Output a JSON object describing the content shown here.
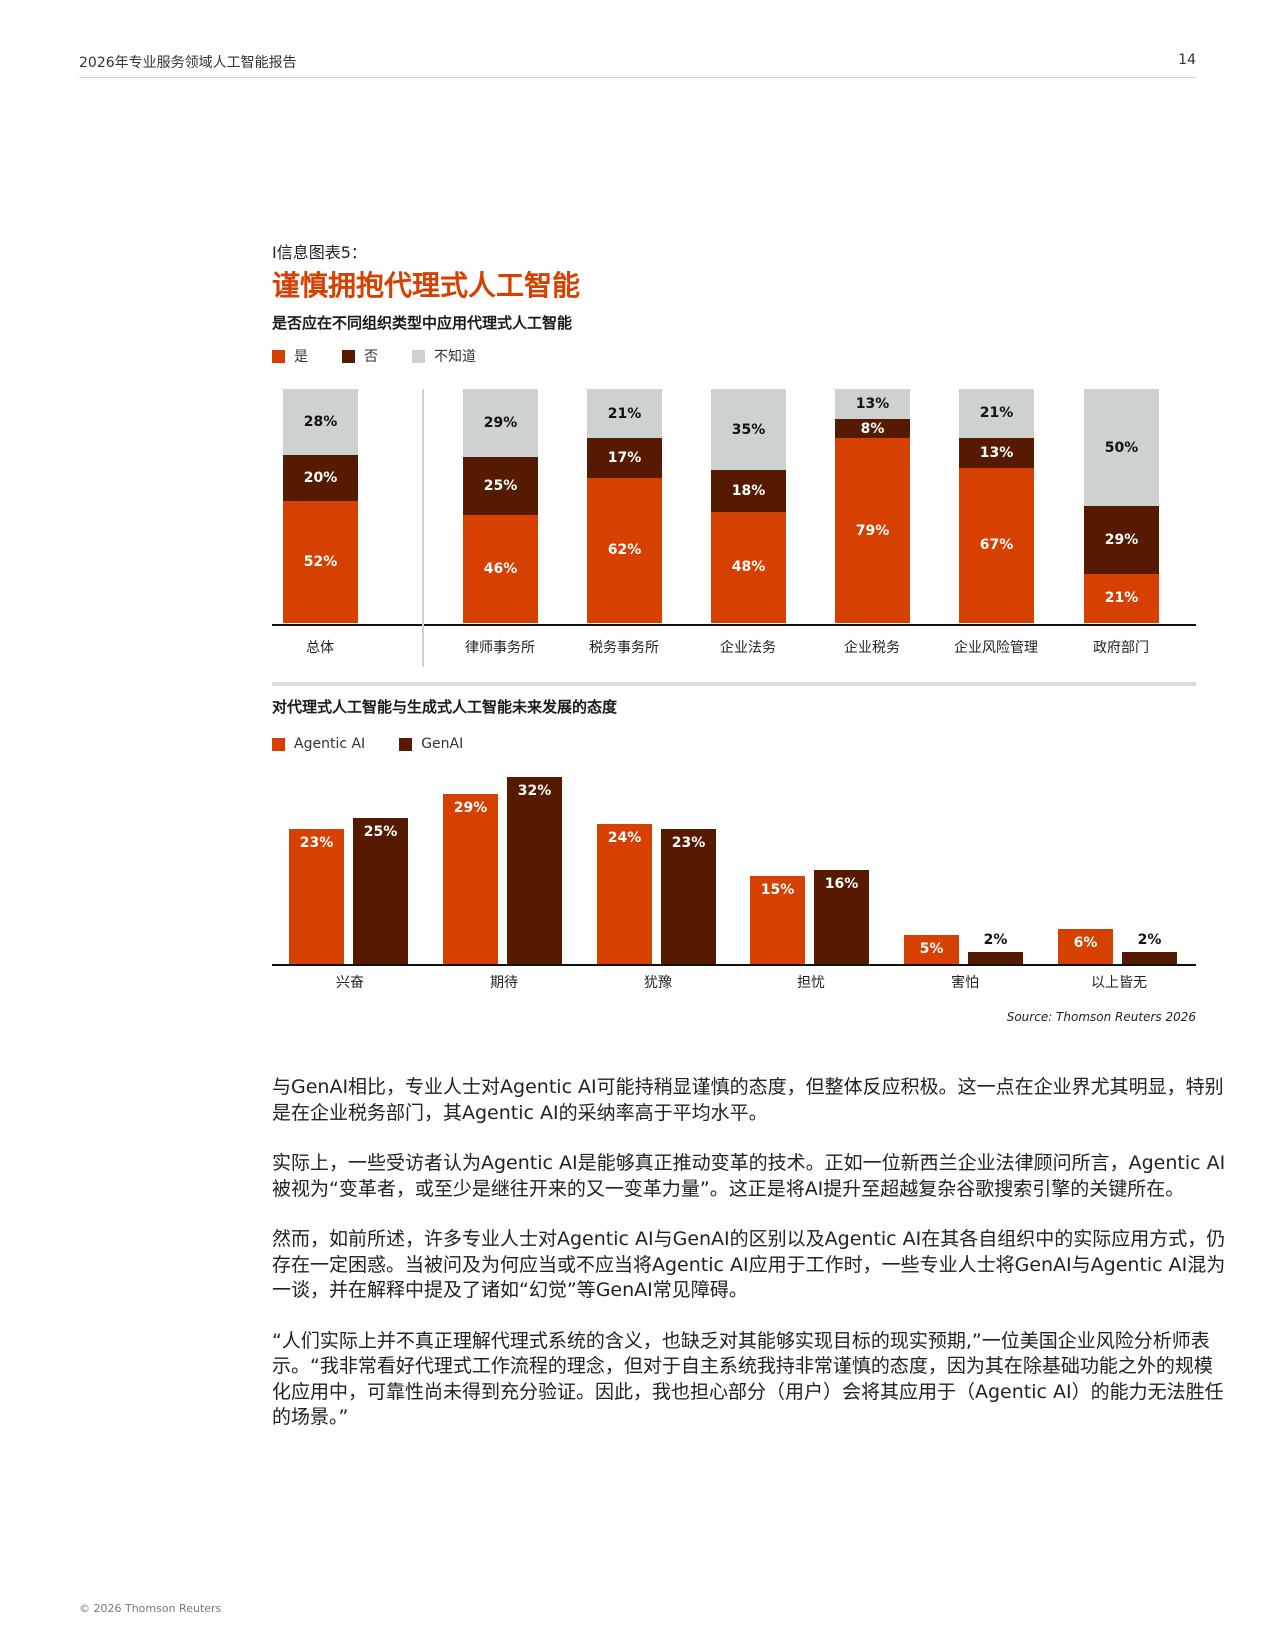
{
  "header": {
    "report_title": "2026年专业服务领域人工智能报告",
    "page_number": "14"
  },
  "infographic": {
    "eyebrow": "I信息图表5：",
    "headline": "谨慎拥抱代理式人工智能",
    "accent_color": "#d64000"
  },
  "chart1": {
    "title": "是否应在不同组织类型中应用代理式人工智能",
    "legend": [
      {
        "label": "是",
        "color": "#d64000"
      },
      {
        "label": "否",
        "color": "#551a00"
      },
      {
        "label": "不知道",
        "color": "#cdd1d0"
      }
    ]
  },
  "chart2": {
    "title": "对代理式人工智能与生成式人工智能未来发展的态度",
    "legend": [
      {
        "label": "Agentic AI",
        "color": "#d64000"
      },
      {
        "label": "GenAI",
        "color": "#551a00"
      }
    ]
  },
  "chart_data": [
    {
      "type": "bar",
      "stacked": true,
      "title": "是否应在不同组织类型中应用代理式人工智能",
      "categories": [
        "总体",
        "律师事务所",
        "税务事务所",
        "企业法务",
        "企业税务",
        "企业风险管理",
        "政府部门"
      ],
      "series": [
        {
          "name": "是",
          "color": "#d64000",
          "values": [
            52,
            46,
            62,
            48,
            79,
            67,
            21
          ],
          "labels": [
            "52%",
            "46%",
            "62%",
            "48%",
            "79%",
            "67%",
            "21%"
          ]
        },
        {
          "name": "否",
          "color": "#551a00",
          "values": [
            20,
            25,
            17,
            18,
            8,
            13,
            29
          ],
          "labels": [
            "20%",
            "25%",
            "17%",
            "18%",
            "8%",
            "13%",
            "29%"
          ]
        },
        {
          "name": "不知道",
          "color": "#cdd1d0",
          "values": [
            28,
            29,
            21,
            35,
            13,
            21,
            50
          ],
          "labels": [
            "28%",
            "29%",
            "21%",
            "35%",
            "13%",
            "21%",
            "50%"
          ]
        }
      ],
      "xlabel": "",
      "ylabel": "",
      "ylim": [
        0,
        100
      ],
      "grid": false,
      "legend_position": "top-left"
    },
    {
      "type": "bar",
      "stacked": false,
      "title": "对代理式人工智能与生成式人工智能未来发展的态度",
      "categories": [
        "兴奋",
        "期待",
        "犹豫",
        "担忧",
        "害怕",
        "以上皆无"
      ],
      "series": [
        {
          "name": "Agentic AI",
          "color": "#d64000",
          "values": [
            23,
            29,
            24,
            15,
            5,
            6
          ],
          "labels": [
            "23%",
            "29%",
            "24%",
            "15%",
            "5%",
            "6%"
          ]
        },
        {
          "name": "GenAI",
          "color": "#551a00",
          "values": [
            25,
            32,
            23,
            16,
            2,
            2
          ],
          "labels": [
            "25%",
            "32%",
            "23%",
            "16%",
            "2%",
            "2%"
          ]
        }
      ],
      "xlabel": "",
      "ylabel": "",
      "ylim": [
        0,
        35
      ],
      "grid": false,
      "legend_position": "top-left"
    }
  ],
  "source": "Source: Thomson Reuters 2026",
  "body": {
    "paragraphs": [
      "与GenAI相比，专业人士对Agentic AI可能持稍显谨慎的态度，但整体反应积极。这一点在企业界尤其明显，特别是在企业税务部门，其Agentic AI的采纳率高于平均水平。",
      "实际上，一些受访者认为Agentic AI是能够真正推动变革的技术。正如一位新西兰企业法律顾问所言，Agentic AI被视为“变革者，或至少是继往开来的又一变革力量”。这正是将AI提升至超越复杂谷歌搜索引擎的关键所在。",
      "然而，如前所述，许多专业人士对Agentic AI与GenAI的区别以及Agentic AI在其各自组织中的实际应用方式，仍存在一定困惑。当被问及为何应当或不应当将Agentic AI应用于工作时，一些专业人士将GenAI与Agentic AI混为一谈，并在解释中提及了诸如“幻觉”等GenAI常见障碍。",
      "“人们实际上并不真正理解代理式系统的含义，也缺乏对其能够实现目标的现实预期,”一位美国企业风险分析师表示。“我非常看好代理式工作流程的理念，但对于自主系统我持非常谨慎的态度，因为其在除基础功能之外的规模化应用中，可靠性尚未得到充分验证。因此，我也担心部分（用户）会将其应用于（Agentic AI）的能力无法胜任的场景。”"
    ]
  },
  "footer": {
    "copyright": "© 2026 Thomson Reuters"
  }
}
